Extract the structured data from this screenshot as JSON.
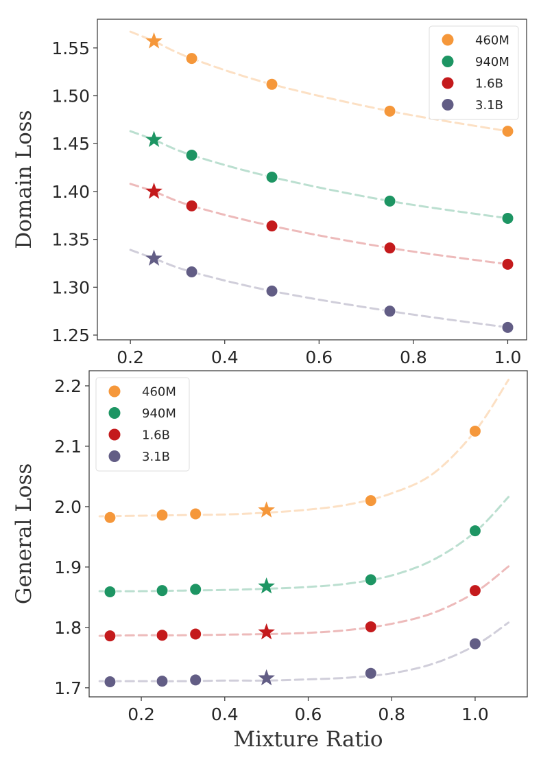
{
  "chart_data": [
    {
      "type": "scatter",
      "title": "",
      "xlabel": "",
      "ylabel": "Domain Loss",
      "xlim": [
        0.13,
        1.04
      ],
      "ylim": [
        1.245,
        1.58
      ],
      "xticks": [
        0.2,
        0.4,
        0.6,
        0.8,
        1.0
      ],
      "xtick_labels": [
        "0.2",
        "0.4",
        "0.6",
        "0.8",
        "1.0"
      ],
      "yticks": [
        1.25,
        1.3,
        1.35,
        1.4,
        1.45,
        1.5,
        1.55
      ],
      "ytick_labels": [
        "1.25",
        "1.30",
        "1.35",
        "1.40",
        "1.45",
        "1.50",
        "1.55"
      ],
      "legend_position": "top-right",
      "grid": false,
      "series": [
        {
          "name": "460M",
          "color": "#F5973A",
          "x": [
            0.33,
            0.5,
            0.75,
            1.0
          ],
          "y": [
            1.539,
            1.512,
            1.484,
            1.463
          ],
          "star": {
            "x": 0.25,
            "y": 1.557
          },
          "fit": {
            "x": [
              0.2,
              0.25,
              0.33,
              0.5,
              0.75,
              1.0
            ],
            "y": [
              1.567,
              1.557,
              1.539,
              1.512,
              1.484,
              1.463
            ]
          }
        },
        {
          "name": "940M",
          "color": "#1D9563",
          "x": [
            0.33,
            0.5,
            0.75,
            1.0
          ],
          "y": [
            1.438,
            1.415,
            1.39,
            1.372
          ],
          "star": {
            "x": 0.25,
            "y": 1.454
          },
          "fit": {
            "x": [
              0.2,
              0.25,
              0.33,
              0.5,
              0.75,
              1.0
            ],
            "y": [
              1.463,
              1.454,
              1.438,
              1.415,
              1.39,
              1.372
            ]
          }
        },
        {
          "name": "1.6B",
          "color": "#C41A1C",
          "x": [
            0.33,
            0.5,
            0.75,
            1.0
          ],
          "y": [
            1.385,
            1.364,
            1.341,
            1.324
          ],
          "star": {
            "x": 0.25,
            "y": 1.4
          },
          "fit": {
            "x": [
              0.2,
              0.25,
              0.33,
              0.5,
              0.75,
              1.0
            ],
            "y": [
              1.408,
              1.4,
              1.385,
              1.364,
              1.341,
              1.324
            ]
          }
        },
        {
          "name": "3.1B",
          "color": "#625D85",
          "x": [
            0.33,
            0.5,
            0.75,
            1.0
          ],
          "y": [
            1.316,
            1.296,
            1.275,
            1.258
          ],
          "star": {
            "x": 0.25,
            "y": 1.33
          },
          "fit": {
            "x": [
              0.2,
              0.25,
              0.33,
              0.5,
              0.75,
              1.0
            ],
            "y": [
              1.339,
              1.33,
              1.316,
              1.296,
              1.275,
              1.258
            ]
          }
        }
      ]
    },
    {
      "type": "scatter",
      "title": "",
      "xlabel": "Mixture Ratio",
      "ylabel": "General  Loss",
      "xlim": [
        0.075,
        1.125
      ],
      "ylim": [
        1.685,
        2.225
      ],
      "xticks": [
        0.2,
        0.4,
        0.6,
        0.8,
        1.0
      ],
      "xtick_labels": [
        "0.2",
        "0.4",
        "0.6",
        "0.8",
        "1.0"
      ],
      "yticks": [
        1.7,
        1.8,
        1.9,
        2.0,
        2.1,
        2.2
      ],
      "ytick_labels": [
        "1.7",
        "1.8",
        "1.9",
        "2.0",
        "2.1",
        "2.2"
      ],
      "legend_position": "top-left",
      "grid": false,
      "series": [
        {
          "name": "460M",
          "color": "#F5973A",
          "x": [
            0.125,
            0.25,
            0.33,
            0.75,
            1.0
          ],
          "y": [
            1.982,
            1.986,
            1.988,
            2.01,
            2.125
          ],
          "star": {
            "x": 0.5,
            "y": 1.994
          },
          "fit": {
            "x": [
              0.1,
              0.2,
              0.3,
              0.4,
              0.5,
              0.6,
              0.7,
              0.8,
              0.9,
              1.0,
              1.08
            ],
            "y": [
              1.984,
              1.985,
              1.986,
              1.987,
              1.99,
              1.995,
              2.004,
              2.022,
              2.055,
              2.125,
              2.21
            ]
          }
        },
        {
          "name": "940M",
          "color": "#1D9563",
          "x": [
            0.125,
            0.25,
            0.33,
            0.75,
            1.0
          ],
          "y": [
            1.859,
            1.861,
            1.863,
            1.879,
            1.96
          ],
          "star": {
            "x": 0.5,
            "y": 1.868
          },
          "fit": {
            "x": [
              0.1,
              0.2,
              0.3,
              0.4,
              0.5,
              0.6,
              0.7,
              0.8,
              0.9,
              1.0,
              1.08
            ],
            "y": [
              1.86,
              1.86,
              1.861,
              1.862,
              1.864,
              1.867,
              1.873,
              1.886,
              1.912,
              1.958,
              2.016
            ]
          }
        },
        {
          "name": "1.6B",
          "color": "#C41A1C",
          "x": [
            0.125,
            0.25,
            0.33,
            0.75,
            1.0
          ],
          "y": [
            1.786,
            1.787,
            1.789,
            1.801,
            1.861
          ],
          "star": {
            "x": 0.5,
            "y": 1.792
          },
          "fit": {
            "x": [
              0.1,
              0.2,
              0.3,
              0.4,
              0.5,
              0.6,
              0.7,
              0.8,
              0.9,
              1.0,
              1.08
            ],
            "y": [
              1.786,
              1.787,
              1.787,
              1.788,
              1.789,
              1.791,
              1.796,
              1.806,
              1.824,
              1.858,
              1.901
            ]
          }
        },
        {
          "name": "3.1B",
          "color": "#625D85",
          "x": [
            0.125,
            0.25,
            0.33,
            0.75,
            1.0
          ],
          "y": [
            1.71,
            1.711,
            1.713,
            1.724,
            1.773
          ],
          "star": {
            "x": 0.5,
            "y": 1.716
          },
          "fit": {
            "x": [
              0.1,
              0.2,
              0.3,
              0.4,
              0.5,
              0.6,
              0.7,
              0.8,
              0.9,
              1.0,
              1.08
            ],
            "y": [
              1.711,
              1.711,
              1.711,
              1.712,
              1.712,
              1.714,
              1.717,
              1.724,
              1.74,
              1.77,
              1.808
            ]
          }
        }
      ]
    }
  ]
}
